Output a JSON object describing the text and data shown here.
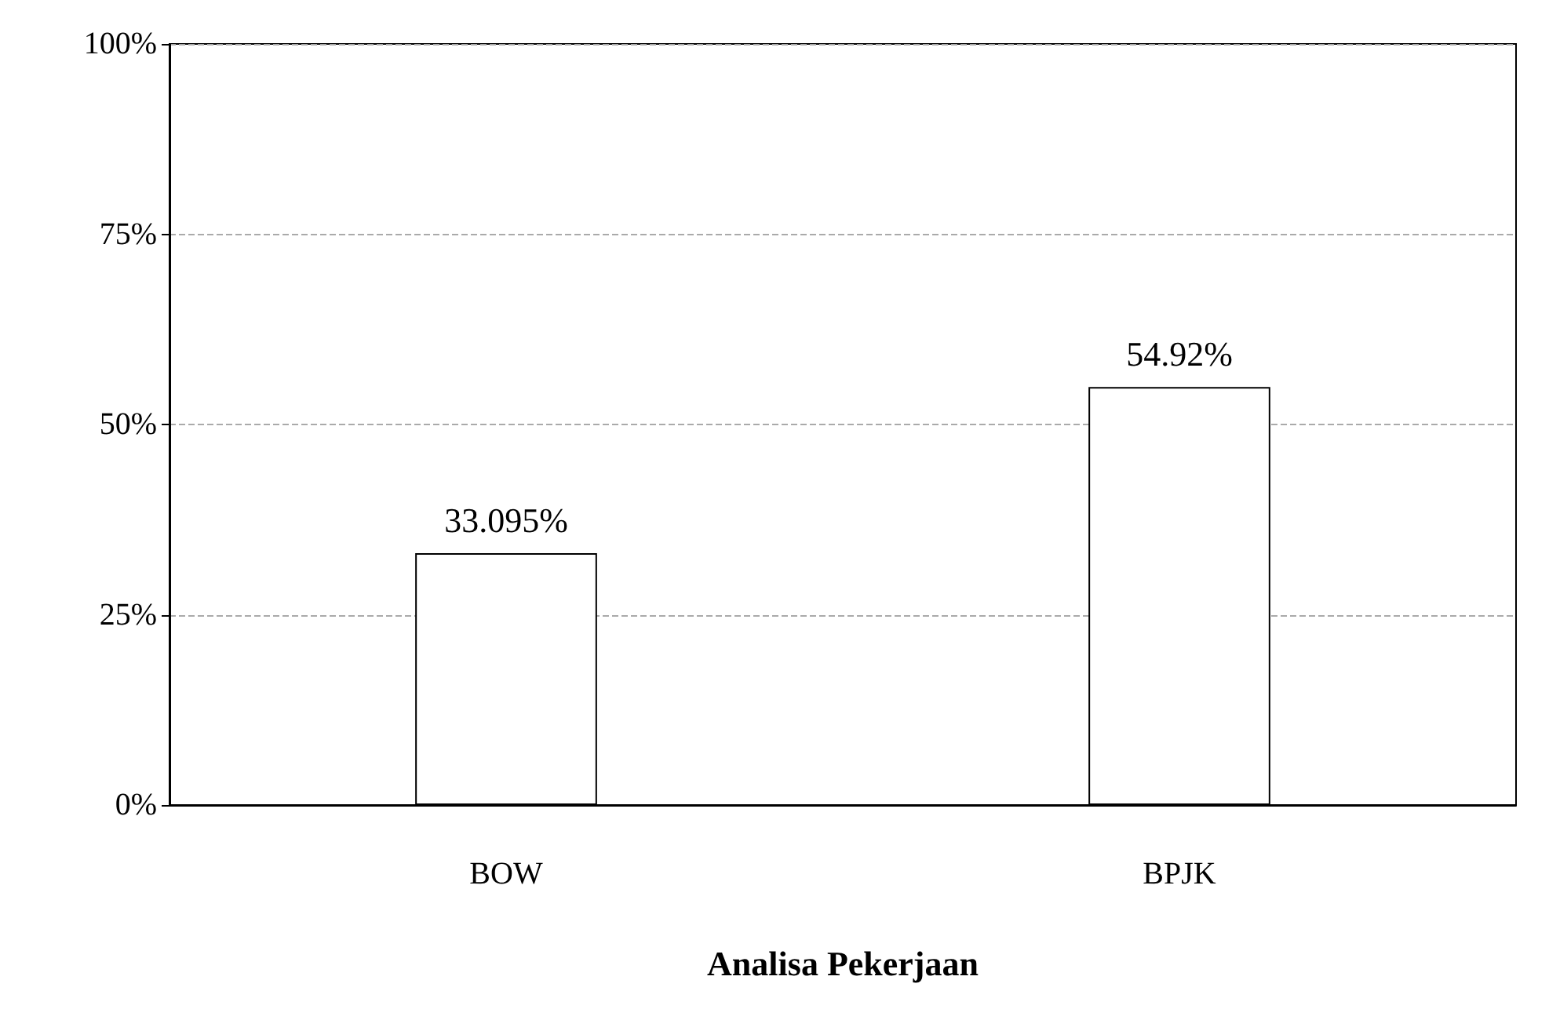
{
  "chart_data": {
    "type": "bar",
    "xlabel": "Analisa Pekerjaan",
    "categories": [
      "BOW",
      "BPJK"
    ],
    "values": [
      33.095,
      54.92
    ],
    "value_labels": [
      "33.095%",
      "54.92%"
    ],
    "color": "#ffffff",
    "ylim": [
      0,
      100
    ],
    "yticks": [
      {
        "value": 0,
        "label": "0%"
      },
      {
        "value": 25,
        "label": "25%"
      },
      {
        "value": 50,
        "label": "50%"
      },
      {
        "value": 75,
        "label": "75%"
      },
      {
        "value": 100,
        "label": "100%"
      }
    ],
    "grid": "y"
  }
}
